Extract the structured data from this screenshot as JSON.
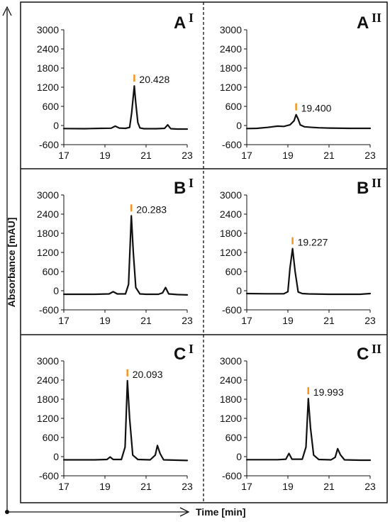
{
  "figure": {
    "x_axis_title": "Time [min]",
    "y_axis_title": "Absorbance [mAU]"
  },
  "chart_data": [
    {
      "type": "line",
      "panel": "A",
      "panel_letter": "A",
      "panel_roman": "I",
      "xlim": [
        17,
        23
      ],
      "ylim": [
        -600,
        3000
      ],
      "xticks": [
        17,
        19,
        21,
        23
      ],
      "yticks": [
        -600,
        0,
        600,
        1200,
        1800,
        2400,
        3000
      ],
      "peak_label": "20.428",
      "peak_x": 20.428,
      "peak_y": 1240,
      "series": [
        {
          "color": "#111111",
          "x": [
            17,
            18,
            18.8,
            19.3,
            19.5,
            19.7,
            20.0,
            20.2,
            20.3,
            20.428,
            20.5,
            20.6,
            20.7,
            20.9,
            21.5,
            21.9,
            22.05,
            22.2,
            22.5,
            23
          ],
          "y": [
            -95,
            -100,
            -90,
            -85,
            -20,
            -80,
            -90,
            -60,
            400,
            1240,
            700,
            90,
            -75,
            -100,
            -100,
            -90,
            20,
            -100,
            -110,
            -110
          ]
        }
      ]
    },
    {
      "type": "line",
      "panel": "A",
      "panel_letter": "A",
      "panel_roman": "II",
      "xlim": [
        17,
        23
      ],
      "ylim": [
        -600,
        3000
      ],
      "xticks": [
        17,
        19,
        21,
        23
      ],
      "yticks": [
        -600,
        0,
        600,
        1200,
        1800,
        2400,
        3000
      ],
      "peak_label": "19.400",
      "peak_x": 19.4,
      "peak_y": 340,
      "series": [
        {
          "color": "#111111",
          "x": [
            17,
            17.5,
            18.0,
            18.5,
            18.8,
            19.1,
            19.3,
            19.4,
            19.5,
            19.6,
            19.8,
            20.2,
            20.5,
            21,
            22,
            23
          ],
          "y": [
            -95,
            -90,
            -60,
            -20,
            -30,
            20,
            150,
            340,
            200,
            20,
            -40,
            -60,
            -70,
            -80,
            -90,
            -90
          ]
        }
      ]
    },
    {
      "type": "line",
      "panel": "B",
      "panel_letter": "B",
      "panel_roman": "I",
      "xlim": [
        17,
        23
      ],
      "ylim": [
        -600,
        3000
      ],
      "xticks": [
        17,
        19,
        21,
        23
      ],
      "yticks": [
        -600,
        0,
        600,
        1200,
        1800,
        2400,
        3000
      ],
      "peak_label": "20.283",
      "peak_x": 20.283,
      "peak_y": 2350,
      "series": [
        {
          "color": "#111111",
          "x": [
            17,
            18.5,
            19.2,
            19.4,
            19.6,
            20.0,
            20.15,
            20.283,
            20.38,
            20.5,
            20.7,
            21.0,
            21.6,
            21.8,
            21.95,
            22.1,
            22.5,
            23
          ],
          "y": [
            -110,
            -110,
            -100,
            -30,
            -100,
            -100,
            200,
            2350,
            1200,
            100,
            -100,
            -110,
            -110,
            -70,
            100,
            -100,
            -120,
            -130
          ]
        }
      ]
    },
    {
      "type": "line",
      "panel": "B",
      "panel_letter": "B",
      "panel_roman": "II",
      "xlim": [
        17,
        23
      ],
      "ylim": [
        -600,
        3000
      ],
      "xticks": [
        17,
        19,
        21,
        23
      ],
      "yticks": [
        -600,
        0,
        600,
        1200,
        1800,
        2400,
        3000
      ],
      "peak_label": "19.227",
      "peak_x": 19.227,
      "peak_y": 1320,
      "series": [
        {
          "color": "#111111",
          "x": [
            17,
            18.0,
            18.8,
            19.0,
            19.1,
            19.227,
            19.35,
            19.5,
            19.7,
            20.0,
            21,
            22,
            22.5,
            23
          ],
          "y": [
            -90,
            -95,
            -95,
            -30,
            700,
            1320,
            600,
            -40,
            -90,
            -100,
            -110,
            -110,
            -110,
            -90
          ]
        }
      ]
    },
    {
      "type": "line",
      "panel": "C",
      "panel_letter": "C",
      "panel_roman": "I",
      "xlim": [
        17,
        23
      ],
      "ylim": [
        -600,
        3000
      ],
      "xticks": [
        17,
        19,
        21,
        23
      ],
      "yticks": [
        -600,
        0,
        600,
        1200,
        1800,
        2400,
        3000
      ],
      "peak_label": "20.093",
      "peak_x": 20.093,
      "peak_y": 2380,
      "series": [
        {
          "color": "#111111",
          "x": [
            17,
            18.5,
            19.1,
            19.25,
            19.4,
            19.8,
            19.98,
            20.093,
            20.2,
            20.35,
            20.6,
            21.2,
            21.45,
            21.55,
            21.68,
            21.85,
            22.5,
            23
          ],
          "y": [
            -100,
            -100,
            -90,
            -10,
            -90,
            -90,
            300,
            2380,
            1200,
            50,
            -90,
            -100,
            50,
            350,
            100,
            -100,
            -110,
            -120
          ]
        }
      ]
    },
    {
      "type": "line",
      "panel": "C",
      "panel_letter": "C",
      "panel_roman": "II",
      "xlim": [
        17,
        23
      ],
      "ylim": [
        -600,
        3000
      ],
      "xticks": [
        17,
        19,
        21,
        23
      ],
      "yticks": [
        -600,
        0,
        600,
        1200,
        1800,
        2400,
        3000
      ],
      "peak_label": "19.993",
      "peak_x": 19.993,
      "peak_y": 1820,
      "series": [
        {
          "color": "#111111",
          "x": [
            17,
            18.5,
            18.9,
            19.05,
            19.2,
            19.7,
            19.88,
            19.993,
            20.1,
            20.25,
            20.5,
            21.1,
            21.3,
            21.42,
            21.55,
            21.75,
            22.5,
            23
          ],
          "y": [
            -95,
            -95,
            -80,
            100,
            -80,
            -80,
            300,
            1820,
            900,
            50,
            -90,
            -100,
            -20,
            250,
            60,
            -100,
            -110,
            -110
          ]
        }
      ]
    }
  ],
  "colors": {
    "trace": "#111111",
    "peak_marker": "#f7941d"
  }
}
